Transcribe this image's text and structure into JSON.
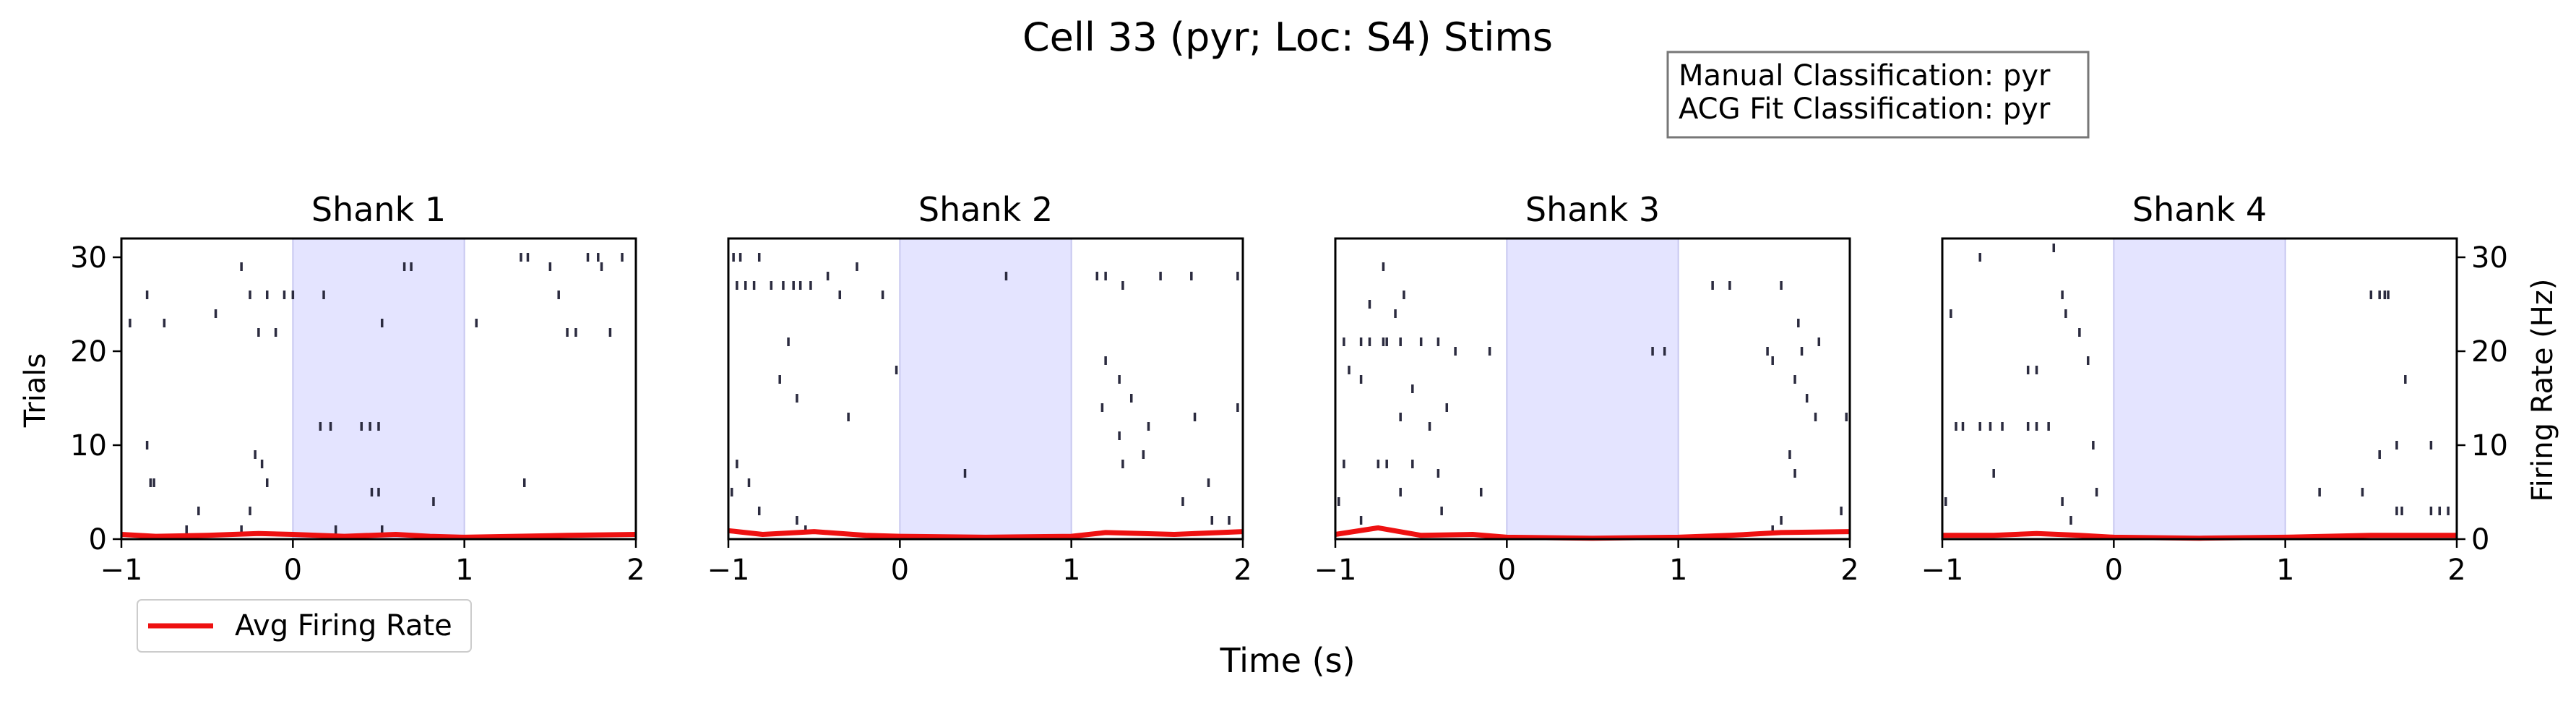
{
  "title": "Cell 33 (pyr; Loc: S4) Stims",
  "info_box": {
    "line1": "Manual Classification: pyr",
    "line2": "ACG Fit Classification: pyr"
  },
  "xlabel": "Time (s)",
  "ylabel_left": "Trials",
  "ylabel_right": "Firing Rate (Hz)",
  "legend": {
    "label": "Avg Firing Rate",
    "placement": "bottom-left"
  },
  "colors": {
    "spike": "#2b2b3f",
    "stim": "#e4e4ff",
    "stim_edge": "#c8c8f0",
    "rate": "#ee1111"
  },
  "chart_data": [
    {
      "type": "raster",
      "title": "Shank 1",
      "xlim": [
        -1,
        2
      ],
      "ylim": [
        0,
        32
      ],
      "xticks": [
        -1,
        0,
        1,
        2
      ],
      "xtick_labels": [
        "−1",
        "0",
        "1",
        "2"
      ],
      "yticks": [
        0,
        10,
        20,
        30
      ],
      "ytick_labels": [
        "0",
        "10",
        "20",
        "30"
      ],
      "stim_window": [
        0,
        1
      ],
      "spikes": [
        [
          -0.95,
          23
        ],
        [
          -0.85,
          26
        ],
        [
          -0.75,
          23
        ],
        [
          -0.45,
          24
        ],
        [
          -0.3,
          29
        ],
        [
          -0.25,
          26
        ],
        [
          -0.2,
          22
        ],
        [
          -0.15,
          26
        ],
        [
          -0.1,
          22
        ],
        [
          -0.3,
          1
        ],
        [
          -0.25,
          3
        ],
        [
          -0.22,
          9
        ],
        [
          -0.18,
          8
        ],
        [
          -0.15,
          6
        ],
        [
          -0.85,
          10
        ],
        [
          -0.83,
          6
        ],
        [
          -0.81,
          6
        ],
        [
          -0.55,
          3
        ],
        [
          -0.62,
          1
        ],
        [
          -0.05,
          26
        ],
        [
          0.0,
          26
        ],
        [
          0.18,
          26
        ],
        [
          0.52,
          23
        ],
        [
          0.65,
          29
        ],
        [
          0.69,
          29
        ],
        [
          0.16,
          12
        ],
        [
          0.22,
          12
        ],
        [
          0.4,
          12
        ],
        [
          0.45,
          12
        ],
        [
          0.5,
          12
        ],
        [
          0.46,
          5
        ],
        [
          0.5,
          5
        ],
        [
          0.52,
          1
        ],
        [
          0.82,
          4
        ],
        [
          0.25,
          1
        ],
        [
          1.07,
          23
        ],
        [
          1.33,
          30
        ],
        [
          1.37,
          30
        ],
        [
          1.5,
          29
        ],
        [
          1.55,
          26
        ],
        [
          1.6,
          22
        ],
        [
          1.65,
          22
        ],
        [
          1.72,
          30
        ],
        [
          1.78,
          30
        ],
        [
          1.8,
          29
        ],
        [
          1.85,
          22
        ],
        [
          1.92,
          30
        ],
        [
          1.35,
          6
        ]
      ],
      "rate": [
        [
          -1,
          0.5
        ],
        [
          -0.8,
          0.3
        ],
        [
          -0.5,
          0.4
        ],
        [
          -0.2,
          0.6
        ],
        [
          0,
          0.5
        ],
        [
          0.3,
          0.3
        ],
        [
          0.6,
          0.5
        ],
        [
          0.8,
          0.3
        ],
        [
          1,
          0.2
        ],
        [
          1.3,
          0.3
        ],
        [
          1.6,
          0.4
        ],
        [
          2,
          0.5
        ]
      ]
    },
    {
      "type": "raster",
      "title": "Shank 2",
      "xlim": [
        -1,
        2
      ],
      "ylim": [
        0,
        32
      ],
      "xticks": [
        -1,
        0,
        1,
        2
      ],
      "xtick_labels": [
        "−1",
        "0",
        "1",
        "2"
      ],
      "yticks": [
        0,
        10,
        20,
        30
      ],
      "ytick_labels": [
        "0",
        "10",
        "20",
        "30"
      ],
      "stim_window": [
        0,
        1
      ],
      "spikes": [
        [
          -0.97,
          30
        ],
        [
          -0.93,
          30
        ],
        [
          -0.82,
          30
        ],
        [
          -0.95,
          27
        ],
        [
          -0.9,
          27
        ],
        [
          -0.85,
          27
        ],
        [
          -0.75,
          27
        ],
        [
          -0.68,
          27
        ],
        [
          -0.62,
          27
        ],
        [
          -0.58,
          27
        ],
        [
          -0.52,
          27
        ],
        [
          -0.42,
          28
        ],
        [
          -0.35,
          26
        ],
        [
          -0.25,
          29
        ],
        [
          -0.1,
          26
        ],
        [
          -0.65,
          21
        ],
        [
          -0.6,
          15
        ],
        [
          -0.7,
          17
        ],
        [
          -0.3,
          13
        ],
        [
          -0.95,
          8
        ],
        [
          -0.88,
          6
        ],
        [
          -0.98,
          5
        ],
        [
          -0.82,
          3
        ],
        [
          -0.6,
          2
        ],
        [
          -0.55,
          1
        ],
        [
          -0.02,
          18
        ],
        [
          0.38,
          7
        ],
        [
          0.62,
          28
        ],
        [
          1.15,
          28
        ],
        [
          1.2,
          28
        ],
        [
          1.3,
          27
        ],
        [
          1.52,
          28
        ],
        [
          1.7,
          28
        ],
        [
          1.97,
          28
        ],
        [
          1.2,
          19
        ],
        [
          1.28,
          17
        ],
        [
          1.35,
          15
        ],
        [
          1.18,
          14
        ],
        [
          1.45,
          12
        ],
        [
          1.72,
          13
        ],
        [
          1.97,
          14
        ],
        [
          1.28,
          11
        ],
        [
          1.3,
          8
        ],
        [
          1.42,
          9
        ],
        [
          1.65,
          4
        ],
        [
          1.8,
          6
        ],
        [
          1.92,
          2
        ],
        [
          1.82,
          2
        ]
      ],
      "rate": [
        [
          -1,
          0.9
        ],
        [
          -0.8,
          0.5
        ],
        [
          -0.5,
          0.8
        ],
        [
          -0.2,
          0.4
        ],
        [
          0,
          0.3
        ],
        [
          0.5,
          0.2
        ],
        [
          1,
          0.3
        ],
        [
          1.2,
          0.7
        ],
        [
          1.6,
          0.5
        ],
        [
          2,
          0.8
        ]
      ]
    },
    {
      "type": "raster",
      "title": "Shank 3",
      "xlim": [
        -1,
        2
      ],
      "ylim": [
        0,
        32
      ],
      "xticks": [
        -1,
        0,
        1,
        2
      ],
      "xtick_labels": [
        "−1",
        "0",
        "1",
        "2"
      ],
      "yticks": [
        0,
        10,
        20,
        30
      ],
      "ytick_labels": [
        "0",
        "10",
        "20",
        "30"
      ],
      "stim_window": [
        0,
        1
      ],
      "spikes": [
        [
          -0.72,
          29
        ],
        [
          -0.8,
          25
        ],
        [
          -0.6,
          26
        ],
        [
          -0.65,
          24
        ],
        [
          -0.95,
          21
        ],
        [
          -0.92,
          18
        ],
        [
          -0.85,
          21
        ],
        [
          -0.8,
          21
        ],
        [
          -0.72,
          21
        ],
        [
          -0.7,
          21
        ],
        [
          -0.62,
          21
        ],
        [
          -0.5,
          21
        ],
        [
          -0.4,
          21
        ],
        [
          -0.3,
          20
        ],
        [
          -0.1,
          20
        ],
        [
          -0.85,
          17
        ],
        [
          -0.55,
          16
        ],
        [
          -0.35,
          14
        ],
        [
          -0.45,
          12
        ],
        [
          -0.62,
          13
        ],
        [
          -0.95,
          8
        ],
        [
          -0.75,
          8
        ],
        [
          -0.7,
          8
        ],
        [
          -0.55,
          8
        ],
        [
          -0.4,
          7
        ],
        [
          -0.62,
          5
        ],
        [
          -0.15,
          5
        ],
        [
          -0.98,
          4
        ],
        [
          -0.38,
          3
        ],
        [
          -0.85,
          2
        ],
        [
          0.85,
          20
        ],
        [
          0.92,
          20
        ],
        [
          1.2,
          27
        ],
        [
          1.3,
          27
        ],
        [
          1.52,
          20
        ],
        [
          1.55,
          19
        ],
        [
          1.6,
          27
        ],
        [
          1.68,
          17
        ],
        [
          1.7,
          23
        ],
        [
          1.72,
          20
        ],
        [
          1.82,
          21
        ],
        [
          1.75,
          15
        ],
        [
          1.8,
          13
        ],
        [
          1.98,
          13
        ],
        [
          1.65,
          9
        ],
        [
          1.68,
          7
        ],
        [
          1.95,
          3
        ],
        [
          1.6,
          2
        ],
        [
          1.55,
          1
        ]
      ],
      "rate": [
        [
          -1,
          0.5
        ],
        [
          -0.75,
          1.2
        ],
        [
          -0.5,
          0.4
        ],
        [
          -0.2,
          0.5
        ],
        [
          0,
          0.2
        ],
        [
          0.5,
          0.1
        ],
        [
          1,
          0.2
        ],
        [
          1.3,
          0.4
        ],
        [
          1.6,
          0.7
        ],
        [
          2,
          0.8
        ]
      ]
    },
    {
      "type": "raster",
      "title": "Shank 4",
      "xlim": [
        -1,
        2
      ],
      "ylim": [
        0,
        32
      ],
      "xticks": [
        -1,
        0,
        1,
        2
      ],
      "xtick_labels": [
        "−1",
        "0",
        "1",
        "2"
      ],
      "yticks": [
        0,
        10,
        20,
        30
      ],
      "ytick_labels": [
        "0",
        "10",
        "20",
        "30"
      ],
      "stim_window": [
        0,
        1
      ],
      "spikes": [
        [
          -0.78,
          30
        ],
        [
          -0.35,
          31
        ],
        [
          -0.95,
          24
        ],
        [
          -0.3,
          26
        ],
        [
          -0.28,
          24
        ],
        [
          -0.45,
          18
        ],
        [
          -0.5,
          18
        ],
        [
          -0.15,
          19
        ],
        [
          -0.2,
          22
        ],
        [
          -0.92,
          12
        ],
        [
          -0.88,
          12
        ],
        [
          -0.78,
          12
        ],
        [
          -0.72,
          12
        ],
        [
          -0.65,
          12
        ],
        [
          -0.5,
          12
        ],
        [
          -0.45,
          12
        ],
        [
          -0.38,
          12
        ],
        [
          -0.12,
          10
        ],
        [
          -0.1,
          5
        ],
        [
          -0.7,
          7
        ],
        [
          -0.3,
          4
        ],
        [
          -0.25,
          2
        ],
        [
          -0.98,
          4
        ],
        [
          1.2,
          5
        ],
        [
          1.5,
          26
        ],
        [
          1.55,
          26
        ],
        [
          1.58,
          26
        ],
        [
          1.6,
          26
        ],
        [
          1.7,
          17
        ],
        [
          1.55,
          9
        ],
        [
          1.65,
          10
        ],
        [
          1.85,
          10
        ],
        [
          1.45,
          5
        ],
        [
          1.65,
          3
        ],
        [
          1.68,
          3
        ],
        [
          1.85,
          3
        ],
        [
          1.9,
          3
        ],
        [
          1.95,
          3
        ]
      ],
      "rate": [
        [
          -1,
          0.4
        ],
        [
          -0.7,
          0.4
        ],
        [
          -0.45,
          0.6
        ],
        [
          -0.2,
          0.4
        ],
        [
          0,
          0.2
        ],
        [
          0.5,
          0.1
        ],
        [
          1,
          0.2
        ],
        [
          1.5,
          0.4
        ],
        [
          2,
          0.4
        ]
      ]
    }
  ]
}
